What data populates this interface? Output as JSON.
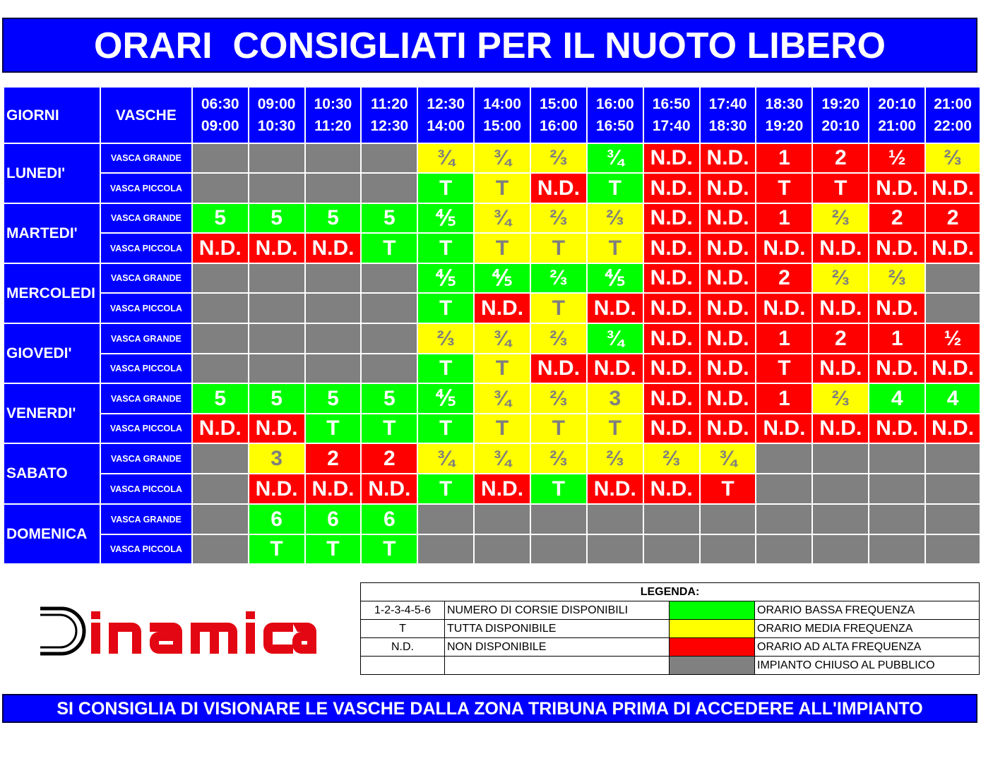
{
  "title": "ORARI  CONSIGLIATI PER IL NUOTO LIBERO",
  "colors": {
    "blue": "#0000ff",
    "green": "#00ff00",
    "yellow": "#ffff00",
    "red": "#ff0000",
    "grey": "#808080",
    "logo_red": "#e30613"
  },
  "header": {
    "giorni": "GIORNI",
    "vasche": "VASCHE",
    "slots": [
      {
        "start": "06:30",
        "end": "09:00"
      },
      {
        "start": "09:00",
        "end": "10:30"
      },
      {
        "start": "10:30",
        "end": "11:20"
      },
      {
        "start": "11:20",
        "end": "12:30"
      },
      {
        "start": "12:30",
        "end": "14:00"
      },
      {
        "start": "14:00",
        "end": "15:00"
      },
      {
        "start": "15:00",
        "end": "16:00"
      },
      {
        "start": "16:00",
        "end": "16:50"
      },
      {
        "start": "16:50",
        "end": "17:40"
      },
      {
        "start": "17:40",
        "end": "18:30"
      },
      {
        "start": "18:30",
        "end": "19:20"
      },
      {
        "start": "19:20",
        "end": "20:10"
      },
      {
        "start": "20:10",
        "end": "21:00"
      },
      {
        "start": "21:00",
        "end": "22:00"
      }
    ]
  },
  "pools": {
    "grande": "VASCA GRANDE",
    "piccola": "VASCA PICCOLA"
  },
  "days": [
    {
      "name": "LUNEDI'",
      "rows": [
        [
          [
            "",
            "grey"
          ],
          [
            "",
            "grey"
          ],
          [
            "",
            "grey"
          ],
          [
            "",
            "grey"
          ],
          [
            "¾",
            "yellow"
          ],
          [
            "¾",
            "yellow"
          ],
          [
            "⅔",
            "yellow"
          ],
          [
            "¾",
            "green"
          ],
          [
            "N.D.",
            "red"
          ],
          [
            "N.D.",
            "red"
          ],
          [
            "1",
            "red"
          ],
          [
            "2",
            "red"
          ],
          [
            "½",
            "red"
          ],
          [
            "⅔",
            "yellow"
          ]
        ],
        [
          [
            "",
            "grey"
          ],
          [
            "",
            "grey"
          ],
          [
            "",
            "grey"
          ],
          [
            "",
            "grey"
          ],
          [
            "T",
            "green"
          ],
          [
            "T",
            "yellow"
          ],
          [
            "N.D.",
            "red"
          ],
          [
            "T",
            "green"
          ],
          [
            "N.D.",
            "red"
          ],
          [
            "N.D.",
            "red"
          ],
          [
            "T",
            "red"
          ],
          [
            "T",
            "red"
          ],
          [
            "N.D.",
            "red"
          ],
          [
            "N.D.",
            "red"
          ]
        ]
      ]
    },
    {
      "name": "MARTEDI'",
      "rows": [
        [
          [
            "5",
            "green"
          ],
          [
            "5",
            "green"
          ],
          [
            "5",
            "green"
          ],
          [
            "5",
            "green"
          ],
          [
            "⅘",
            "green"
          ],
          [
            "¾",
            "yellow"
          ],
          [
            "⅔",
            "yellow"
          ],
          [
            "⅔",
            "yellow"
          ],
          [
            "N.D.",
            "red"
          ],
          [
            "N.D.",
            "red"
          ],
          [
            "1",
            "red"
          ],
          [
            "⅔",
            "yellow"
          ],
          [
            "2",
            "red"
          ],
          [
            "2",
            "red"
          ]
        ],
        [
          [
            "N.D.",
            "red"
          ],
          [
            "N.D.",
            "red"
          ],
          [
            "N.D.",
            "red"
          ],
          [
            "T",
            "green"
          ],
          [
            "T",
            "green"
          ],
          [
            "T",
            "yellow"
          ],
          [
            "T",
            "yellow"
          ],
          [
            "T",
            "yellow"
          ],
          [
            "N.D.",
            "red"
          ],
          [
            "N.D.",
            "red"
          ],
          [
            "N.D.",
            "red"
          ],
          [
            "N.D.",
            "red"
          ],
          [
            "N.D.",
            "red"
          ],
          [
            "N.D.",
            "red"
          ]
        ]
      ]
    },
    {
      "name": "MERCOLEDI",
      "rows": [
        [
          [
            "",
            "grey"
          ],
          [
            "",
            "grey"
          ],
          [
            "",
            "grey"
          ],
          [
            "",
            "grey"
          ],
          [
            "⅘",
            "green"
          ],
          [
            "⅘",
            "green"
          ],
          [
            "⅔",
            "green"
          ],
          [
            "⅘",
            "green"
          ],
          [
            "N.D.",
            "red"
          ],
          [
            "N.D.",
            "red"
          ],
          [
            "2",
            "red"
          ],
          [
            "⅔",
            "yellow"
          ],
          [
            "⅔",
            "yellow"
          ],
          [
            "",
            "grey"
          ]
        ],
        [
          [
            "",
            "grey"
          ],
          [
            "",
            "grey"
          ],
          [
            "",
            "grey"
          ],
          [
            "",
            "grey"
          ],
          [
            "T",
            "green"
          ],
          [
            "N.D.",
            "red"
          ],
          [
            "T",
            "yellow"
          ],
          [
            "N.D.",
            "red"
          ],
          [
            "N.D.",
            "red"
          ],
          [
            "N.D.",
            "red"
          ],
          [
            "N.D.",
            "red"
          ],
          [
            "N.D.",
            "red"
          ],
          [
            "N.D.",
            "red"
          ],
          [
            "",
            "grey"
          ]
        ]
      ]
    },
    {
      "name": "GIOVEDI'",
      "rows": [
        [
          [
            "",
            "grey"
          ],
          [
            "",
            "grey"
          ],
          [
            "",
            "grey"
          ],
          [
            "",
            "grey"
          ],
          [
            "⅔",
            "yellow"
          ],
          [
            "¾",
            "yellow"
          ],
          [
            "⅔",
            "yellow"
          ],
          [
            "¾",
            "green"
          ],
          [
            "N.D.",
            "red"
          ],
          [
            "N.D.",
            "red"
          ],
          [
            "1",
            "red"
          ],
          [
            "2",
            "red"
          ],
          [
            "1",
            "red"
          ],
          [
            "½",
            "red"
          ]
        ],
        [
          [
            "",
            "grey"
          ],
          [
            "",
            "grey"
          ],
          [
            "",
            "grey"
          ],
          [
            "",
            "grey"
          ],
          [
            "T",
            "green"
          ],
          [
            "T",
            "yellow"
          ],
          [
            "N.D.",
            "red"
          ],
          [
            "N.D.",
            "red"
          ],
          [
            "N.D.",
            "red"
          ],
          [
            "N.D.",
            "red"
          ],
          [
            "T",
            "red"
          ],
          [
            "N.D.",
            "red"
          ],
          [
            "N.D.",
            "red"
          ],
          [
            "N.D.",
            "red"
          ]
        ]
      ]
    },
    {
      "name": "VENERDI'",
      "rows": [
        [
          [
            "5",
            "green"
          ],
          [
            "5",
            "green"
          ],
          [
            "5",
            "green"
          ],
          [
            "5",
            "green"
          ],
          [
            "⅘",
            "green"
          ],
          [
            "¾",
            "yellow"
          ],
          [
            "⅔",
            "yellow"
          ],
          [
            "3",
            "yellow"
          ],
          [
            "N.D.",
            "red"
          ],
          [
            "N.D.",
            "red"
          ],
          [
            "1",
            "red"
          ],
          [
            "⅔",
            "yellow"
          ],
          [
            "4",
            "green"
          ],
          [
            "4",
            "green"
          ]
        ],
        [
          [
            "N.D.",
            "red"
          ],
          [
            "N.D.",
            "red"
          ],
          [
            "T",
            "green"
          ],
          [
            "T",
            "green"
          ],
          [
            "T",
            "green"
          ],
          [
            "T",
            "yellow"
          ],
          [
            "T",
            "yellow"
          ],
          [
            "T",
            "yellow"
          ],
          [
            "N.D.",
            "red"
          ],
          [
            "N.D.",
            "red"
          ],
          [
            "N.D.",
            "red"
          ],
          [
            "N.D.",
            "red"
          ],
          [
            "N.D.",
            "red"
          ],
          [
            "N.D.",
            "red"
          ]
        ]
      ]
    },
    {
      "name": "SABATO",
      "rows": [
        [
          [
            "",
            "grey"
          ],
          [
            "3",
            "yellow"
          ],
          [
            "2",
            "red"
          ],
          [
            "2",
            "red"
          ],
          [
            "¾",
            "yellow"
          ],
          [
            "¾",
            "yellow"
          ],
          [
            "⅔",
            "yellow"
          ],
          [
            "⅔",
            "yellow"
          ],
          [
            "⅔",
            "yellow"
          ],
          [
            "¾",
            "yellow"
          ],
          [
            "",
            "grey"
          ],
          [
            "",
            "grey"
          ],
          [
            "",
            "grey"
          ],
          [
            "",
            "grey"
          ]
        ],
        [
          [
            "",
            "grey"
          ],
          [
            "N.D.",
            "red"
          ],
          [
            "N.D.",
            "red"
          ],
          [
            "N.D.",
            "red"
          ],
          [
            "T",
            "green"
          ],
          [
            "N.D.",
            "red"
          ],
          [
            "T",
            "green"
          ],
          [
            "N.D.",
            "red"
          ],
          [
            "N.D.",
            "red"
          ],
          [
            "T",
            "red"
          ],
          [
            "",
            "grey"
          ],
          [
            "",
            "grey"
          ],
          [
            "",
            "grey"
          ],
          [
            "",
            "grey"
          ]
        ]
      ]
    },
    {
      "name": "DOMENICA",
      "rows": [
        [
          [
            "",
            "grey"
          ],
          [
            "6",
            "green"
          ],
          [
            "6",
            "green"
          ],
          [
            "6",
            "green"
          ],
          [
            "",
            "grey"
          ],
          [
            "",
            "grey"
          ],
          [
            "",
            "grey"
          ],
          [
            "",
            "grey"
          ],
          [
            "",
            "grey"
          ],
          [
            "",
            "grey"
          ],
          [
            "",
            "grey"
          ],
          [
            "",
            "grey"
          ],
          [
            "",
            "grey"
          ],
          [
            "",
            "grey"
          ]
        ],
        [
          [
            "",
            "grey"
          ],
          [
            "T",
            "green"
          ],
          [
            "T",
            "green"
          ],
          [
            "T",
            "green"
          ],
          [
            "",
            "grey"
          ],
          [
            "",
            "grey"
          ],
          [
            "",
            "grey"
          ],
          [
            "",
            "grey"
          ],
          [
            "",
            "grey"
          ],
          [
            "",
            "grey"
          ],
          [
            "",
            "grey"
          ],
          [
            "",
            "grey"
          ],
          [
            "",
            "grey"
          ],
          [
            "",
            "grey"
          ]
        ]
      ]
    }
  ],
  "logo": {
    "text": "DINAMICA"
  },
  "legend": {
    "title": "LEGENDA:",
    "rows": [
      {
        "code": "1-2-3-4-5-6",
        "meaning": "NUMERO DI CORSIE DISPONIBILI",
        "color": "green",
        "color_label": "ORARIO BASSA FREQUENZA"
      },
      {
        "code": "T",
        "meaning": "TUTTA DISPONIBILE",
        "color": "yellow",
        "color_label": "ORARIO  MEDIA FREQUENZA"
      },
      {
        "code": "N.D.",
        "meaning": "NON DISPONIBILE",
        "color": "red",
        "color_label": "ORARIO AD ALTA FREQUENZA"
      },
      {
        "code": "",
        "meaning": "",
        "color": "grey",
        "color_label": "IMPIANTO CHIUSO AL PUBBLICO"
      }
    ]
  },
  "footer": "SI CONSIGLIA DI VISIONARE LE VASCHE DALLA ZONA TRIBUNA PRIMA DI ACCEDERE ALL'IMPIANTO"
}
